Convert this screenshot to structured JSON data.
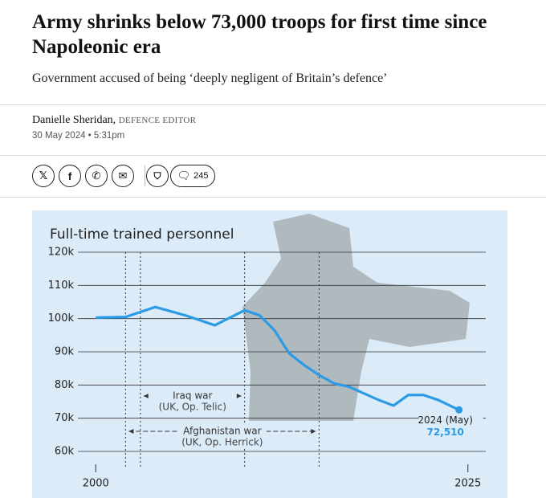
{
  "article": {
    "title": "Army shrinks below 73,000 troops for first time since Napoleonic era",
    "subtitle": "Government accused of being ‘deeply negligent of Britain’s defence’",
    "author": "Danielle Sheridan,",
    "author_role": "DEFENCE EDITOR",
    "date": "30 May 2024 • 5:31pm",
    "comment_count": "245"
  },
  "chart_data": {
    "type": "line",
    "title": "Full-time trained personnel",
    "color": "#2b9be6",
    "x": [
      2000,
      2002,
      2004,
      2006,
      2008,
      2010,
      2011,
      2012,
      2013,
      2014,
      2015,
      2016,
      2017,
      2018,
      2019,
      2020,
      2021,
      2022,
      2023,
      2024.4
    ],
    "values": [
      100300,
      100500,
      103500,
      101000,
      98000,
      102500,
      101000,
      96500,
      89500,
      86000,
      83000,
      80500,
      79500,
      77500,
      75500,
      73800,
      77000,
      77000,
      75500,
      72510
    ],
    "value_labels": [
      null,
      null,
      null,
      null,
      null,
      null,
      null,
      null,
      null,
      null,
      null,
      null,
      null,
      null,
      null,
      null,
      null,
      null,
      null,
      "72,510"
    ],
    "last_point_label": "2024 (May)",
    "xlim": [
      1998.8,
      2026.2
    ],
    "xticks": [
      2000,
      2025
    ],
    "ylim": [
      60000,
      120000
    ],
    "yticks": [
      {
        "value": 60000,
        "label": "60k"
      },
      {
        "value": 70000,
        "label": "70k"
      },
      {
        "value": 80000,
        "label": "80k"
      },
      {
        "value": 90000,
        "label": "90k"
      },
      {
        "value": 100000,
        "label": "100k"
      },
      {
        "value": 110000,
        "label": "110k"
      },
      {
        "value": 120000,
        "label": "120k"
      }
    ],
    "grid": true,
    "annotations": [
      {
        "text": "Iraq war",
        "subtext": "(UK, Op. Telic)",
        "start": 2003,
        "end": 2010
      },
      {
        "text": "Afghanistan war",
        "subtext": "(UK, Op. Herrick)",
        "start": 2002,
        "end": 2015
      }
    ]
  }
}
